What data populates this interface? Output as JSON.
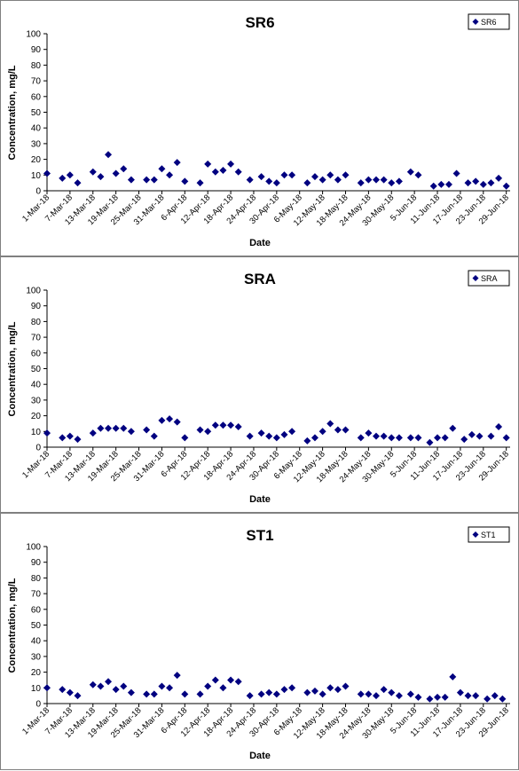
{
  "chart_data": [
    {
      "type": "scatter",
      "title": "SR6",
      "xlabel": "Date",
      "ylabel": "Concentration, mg/L",
      "ylim": [
        0,
        100
      ],
      "yticks": [
        0,
        10,
        20,
        30,
        40,
        50,
        60,
        70,
        80,
        90,
        100
      ],
      "xlim": [
        "2018-03-01",
        "2018-06-30"
      ],
      "xtick_labels": [
        "1-Mar-18",
        "7-Mar-18",
        "13-Mar-18",
        "19-Mar-18",
        "25-Mar-18",
        "31-Mar-18",
        "6-Apr-18",
        "12-Apr-18",
        "18-Apr-18",
        "24-Apr-18",
        "30-Apr-18",
        "6-May-18",
        "12-May-18",
        "18-May-18",
        "24-May-18",
        "30-May-18",
        "5-Jun-18",
        "11-Jun-18",
        "17-Jun-18",
        "23-Jun-18",
        "29-Jun-18"
      ],
      "legend": "top-right",
      "color": "#000080",
      "series": [
        {
          "name": "SR6",
          "points": [
            {
              "x": "2018-03-01",
              "y": 11
            },
            {
              "x": "2018-03-05",
              "y": 8
            },
            {
              "x": "2018-03-07",
              "y": 10
            },
            {
              "x": "2018-03-09",
              "y": 5
            },
            {
              "x": "2018-03-13",
              "y": 12
            },
            {
              "x": "2018-03-15",
              "y": 9
            },
            {
              "x": "2018-03-17",
              "y": 23
            },
            {
              "x": "2018-03-19",
              "y": 11
            },
            {
              "x": "2018-03-21",
              "y": 14
            },
            {
              "x": "2018-03-23",
              "y": 7
            },
            {
              "x": "2018-03-27",
              "y": 7
            },
            {
              "x": "2018-03-29",
              "y": 7
            },
            {
              "x": "2018-03-31",
              "y": 14
            },
            {
              "x": "2018-04-02",
              "y": 10
            },
            {
              "x": "2018-04-04",
              "y": 18
            },
            {
              "x": "2018-04-06",
              "y": 6
            },
            {
              "x": "2018-04-10",
              "y": 5
            },
            {
              "x": "2018-04-12",
              "y": 17
            },
            {
              "x": "2018-04-14",
              "y": 12
            },
            {
              "x": "2018-04-16",
              "y": 13
            },
            {
              "x": "2018-04-18",
              "y": 17
            },
            {
              "x": "2018-04-20",
              "y": 12
            },
            {
              "x": "2018-04-23",
              "y": 7
            },
            {
              "x": "2018-04-26",
              "y": 9
            },
            {
              "x": "2018-04-28",
              "y": 6
            },
            {
              "x": "2018-04-30",
              "y": 5
            },
            {
              "x": "2018-05-02",
              "y": 10
            },
            {
              "x": "2018-05-04",
              "y": 10
            },
            {
              "x": "2018-05-08",
              "y": 5
            },
            {
              "x": "2018-05-10",
              "y": 9
            },
            {
              "x": "2018-05-12",
              "y": 7
            },
            {
              "x": "2018-05-14",
              "y": 10
            },
            {
              "x": "2018-05-16",
              "y": 7
            },
            {
              "x": "2018-05-18",
              "y": 10
            },
            {
              "x": "2018-05-22",
              "y": 5
            },
            {
              "x": "2018-05-24",
              "y": 7
            },
            {
              "x": "2018-05-26",
              "y": 7
            },
            {
              "x": "2018-05-28",
              "y": 7
            },
            {
              "x": "2018-05-30",
              "y": 5
            },
            {
              "x": "2018-06-01",
              "y": 6
            },
            {
              "x": "2018-06-04",
              "y": 12
            },
            {
              "x": "2018-06-06",
              "y": 10
            },
            {
              "x": "2018-06-10",
              "y": 3
            },
            {
              "x": "2018-06-12",
              "y": 4
            },
            {
              "x": "2018-06-14",
              "y": 4
            },
            {
              "x": "2018-06-16",
              "y": 11
            },
            {
              "x": "2018-06-19",
              "y": 5
            },
            {
              "x": "2018-06-21",
              "y": 6
            },
            {
              "x": "2018-06-23",
              "y": 4
            },
            {
              "x": "2018-06-25",
              "y": 5
            },
            {
              "x": "2018-06-27",
              "y": 8
            },
            {
              "x": "2018-06-29",
              "y": 3
            }
          ]
        }
      ]
    },
    {
      "type": "scatter",
      "title": "SRA",
      "xlabel": "Date",
      "ylabel": "Concentration, mg/L",
      "ylim": [
        0,
        100
      ],
      "yticks": [
        0,
        10,
        20,
        30,
        40,
        50,
        60,
        70,
        80,
        90,
        100
      ],
      "xlim": [
        "2018-03-01",
        "2018-06-30"
      ],
      "xtick_labels": [
        "1-Mar-18",
        "7-Mar-18",
        "13-Mar-18",
        "19-Mar-18",
        "25-Mar-18",
        "31-Mar-18",
        "6-Apr-18",
        "12-Apr-18",
        "18-Apr-18",
        "24-Apr-18",
        "30-Apr-18",
        "6-May-18",
        "12-May-18",
        "18-May-18",
        "24-May-18",
        "30-May-18",
        "5-Jun-18",
        "11-Jun-18",
        "17-Jun-18",
        "23-Jun-18",
        "29-Jun-18"
      ],
      "legend": "top-right",
      "color": "#000080",
      "series": [
        {
          "name": "SRA",
          "points": [
            {
              "x": "2018-03-01",
              "y": 9
            },
            {
              "x": "2018-03-05",
              "y": 6
            },
            {
              "x": "2018-03-07",
              "y": 7
            },
            {
              "x": "2018-03-09",
              "y": 5
            },
            {
              "x": "2018-03-13",
              "y": 9
            },
            {
              "x": "2018-03-15",
              "y": 12
            },
            {
              "x": "2018-03-17",
              "y": 12
            },
            {
              "x": "2018-03-19",
              "y": 12
            },
            {
              "x": "2018-03-21",
              "y": 12
            },
            {
              "x": "2018-03-23",
              "y": 10
            },
            {
              "x": "2018-03-27",
              "y": 11
            },
            {
              "x": "2018-03-29",
              "y": 7
            },
            {
              "x": "2018-03-31",
              "y": 17
            },
            {
              "x": "2018-04-02",
              "y": 18
            },
            {
              "x": "2018-04-04",
              "y": 16
            },
            {
              "x": "2018-04-06",
              "y": 6
            },
            {
              "x": "2018-04-10",
              "y": 11
            },
            {
              "x": "2018-04-12",
              "y": 10
            },
            {
              "x": "2018-04-14",
              "y": 14
            },
            {
              "x": "2018-04-16",
              "y": 14
            },
            {
              "x": "2018-04-18",
              "y": 14
            },
            {
              "x": "2018-04-20",
              "y": 13
            },
            {
              "x": "2018-04-23",
              "y": 7
            },
            {
              "x": "2018-04-26",
              "y": 9
            },
            {
              "x": "2018-04-28",
              "y": 7
            },
            {
              "x": "2018-04-30",
              "y": 6
            },
            {
              "x": "2018-05-02",
              "y": 8
            },
            {
              "x": "2018-05-04",
              "y": 10
            },
            {
              "x": "2018-05-08",
              "y": 4
            },
            {
              "x": "2018-05-10",
              "y": 6
            },
            {
              "x": "2018-05-12",
              "y": 10
            },
            {
              "x": "2018-05-14",
              "y": 15
            },
            {
              "x": "2018-05-16",
              "y": 11
            },
            {
              "x": "2018-05-18",
              "y": 11
            },
            {
              "x": "2018-05-22",
              "y": 6
            },
            {
              "x": "2018-05-24",
              "y": 9
            },
            {
              "x": "2018-05-26",
              "y": 7
            },
            {
              "x": "2018-05-28",
              "y": 7
            },
            {
              "x": "2018-05-30",
              "y": 6
            },
            {
              "x": "2018-06-01",
              "y": 6
            },
            {
              "x": "2018-06-04",
              "y": 6
            },
            {
              "x": "2018-06-06",
              "y": 6
            },
            {
              "x": "2018-06-09",
              "y": 3
            },
            {
              "x": "2018-06-11",
              "y": 6
            },
            {
              "x": "2018-06-13",
              "y": 6
            },
            {
              "x": "2018-06-15",
              "y": 12
            },
            {
              "x": "2018-06-18",
              "y": 5
            },
            {
              "x": "2018-06-20",
              "y": 8
            },
            {
              "x": "2018-06-22",
              "y": 7
            },
            {
              "x": "2018-06-25",
              "y": 7
            },
            {
              "x": "2018-06-27",
              "y": 13
            },
            {
              "x": "2018-06-29",
              "y": 6
            }
          ]
        }
      ]
    },
    {
      "type": "scatter",
      "title": "ST1",
      "xlabel": "Date",
      "ylabel": "Concentration, mg/L",
      "ylim": [
        0,
        100
      ],
      "yticks": [
        0,
        10,
        20,
        30,
        40,
        50,
        60,
        70,
        80,
        90,
        100
      ],
      "xlim": [
        "2018-03-01",
        "2018-06-30"
      ],
      "xtick_labels": [
        "1-Mar-18",
        "7-Mar-18",
        "13-Mar-18",
        "19-Mar-18",
        "25-Mar-18",
        "31-Mar-18",
        "6-Apr-18",
        "12-Apr-18",
        "18-Apr-18",
        "24-Apr-18",
        "30-Apr-18",
        "6-May-18",
        "12-May-18",
        "18-May-18",
        "24-May-18",
        "30-May-18",
        "5-Jun-18",
        "11-Jun-18",
        "17-Jun-18",
        "23-Jun-18",
        "29-Jun-18"
      ],
      "legend": "top-right",
      "color": "#000080",
      "series": [
        {
          "name": "ST1",
          "points": [
            {
              "x": "2018-03-01",
              "y": 10
            },
            {
              "x": "2018-03-05",
              "y": 9
            },
            {
              "x": "2018-03-07",
              "y": 7
            },
            {
              "x": "2018-03-09",
              "y": 5
            },
            {
              "x": "2018-03-13",
              "y": 12
            },
            {
              "x": "2018-03-15",
              "y": 11
            },
            {
              "x": "2018-03-17",
              "y": 14
            },
            {
              "x": "2018-03-19",
              "y": 9
            },
            {
              "x": "2018-03-21",
              "y": 11
            },
            {
              "x": "2018-03-23",
              "y": 7
            },
            {
              "x": "2018-03-27",
              "y": 6
            },
            {
              "x": "2018-03-29",
              "y": 6
            },
            {
              "x": "2018-03-31",
              "y": 11
            },
            {
              "x": "2018-04-02",
              "y": 10
            },
            {
              "x": "2018-04-04",
              "y": 18
            },
            {
              "x": "2018-04-06",
              "y": 6
            },
            {
              "x": "2018-04-10",
              "y": 6
            },
            {
              "x": "2018-04-12",
              "y": 11
            },
            {
              "x": "2018-04-14",
              "y": 15
            },
            {
              "x": "2018-04-16",
              "y": 10
            },
            {
              "x": "2018-04-18",
              "y": 15
            },
            {
              "x": "2018-04-20",
              "y": 14
            },
            {
              "x": "2018-04-23",
              "y": 5
            },
            {
              "x": "2018-04-26",
              "y": 6
            },
            {
              "x": "2018-04-28",
              "y": 7
            },
            {
              "x": "2018-04-30",
              "y": 6
            },
            {
              "x": "2018-05-02",
              "y": 9
            },
            {
              "x": "2018-05-04",
              "y": 10
            },
            {
              "x": "2018-05-08",
              "y": 7
            },
            {
              "x": "2018-05-10",
              "y": 8
            },
            {
              "x": "2018-05-12",
              "y": 6
            },
            {
              "x": "2018-05-14",
              "y": 10
            },
            {
              "x": "2018-05-16",
              "y": 9
            },
            {
              "x": "2018-05-18",
              "y": 11
            },
            {
              "x": "2018-05-22",
              "y": 6
            },
            {
              "x": "2018-05-24",
              "y": 6
            },
            {
              "x": "2018-05-26",
              "y": 5
            },
            {
              "x": "2018-05-28",
              "y": 9
            },
            {
              "x": "2018-05-30",
              "y": 7
            },
            {
              "x": "2018-06-01",
              "y": 5
            },
            {
              "x": "2018-06-04",
              "y": 6
            },
            {
              "x": "2018-06-06",
              "y": 4
            },
            {
              "x": "2018-06-09",
              "y": 3
            },
            {
              "x": "2018-06-11",
              "y": 4
            },
            {
              "x": "2018-06-13",
              "y": 4
            },
            {
              "x": "2018-06-15",
              "y": 17
            },
            {
              "x": "2018-06-17",
              "y": 7
            },
            {
              "x": "2018-06-19",
              "y": 5
            },
            {
              "x": "2018-06-21",
              "y": 5
            },
            {
              "x": "2018-06-24",
              "y": 3
            },
            {
              "x": "2018-06-26",
              "y": 5
            },
            {
              "x": "2018-06-28",
              "y": 3
            }
          ]
        }
      ]
    }
  ]
}
